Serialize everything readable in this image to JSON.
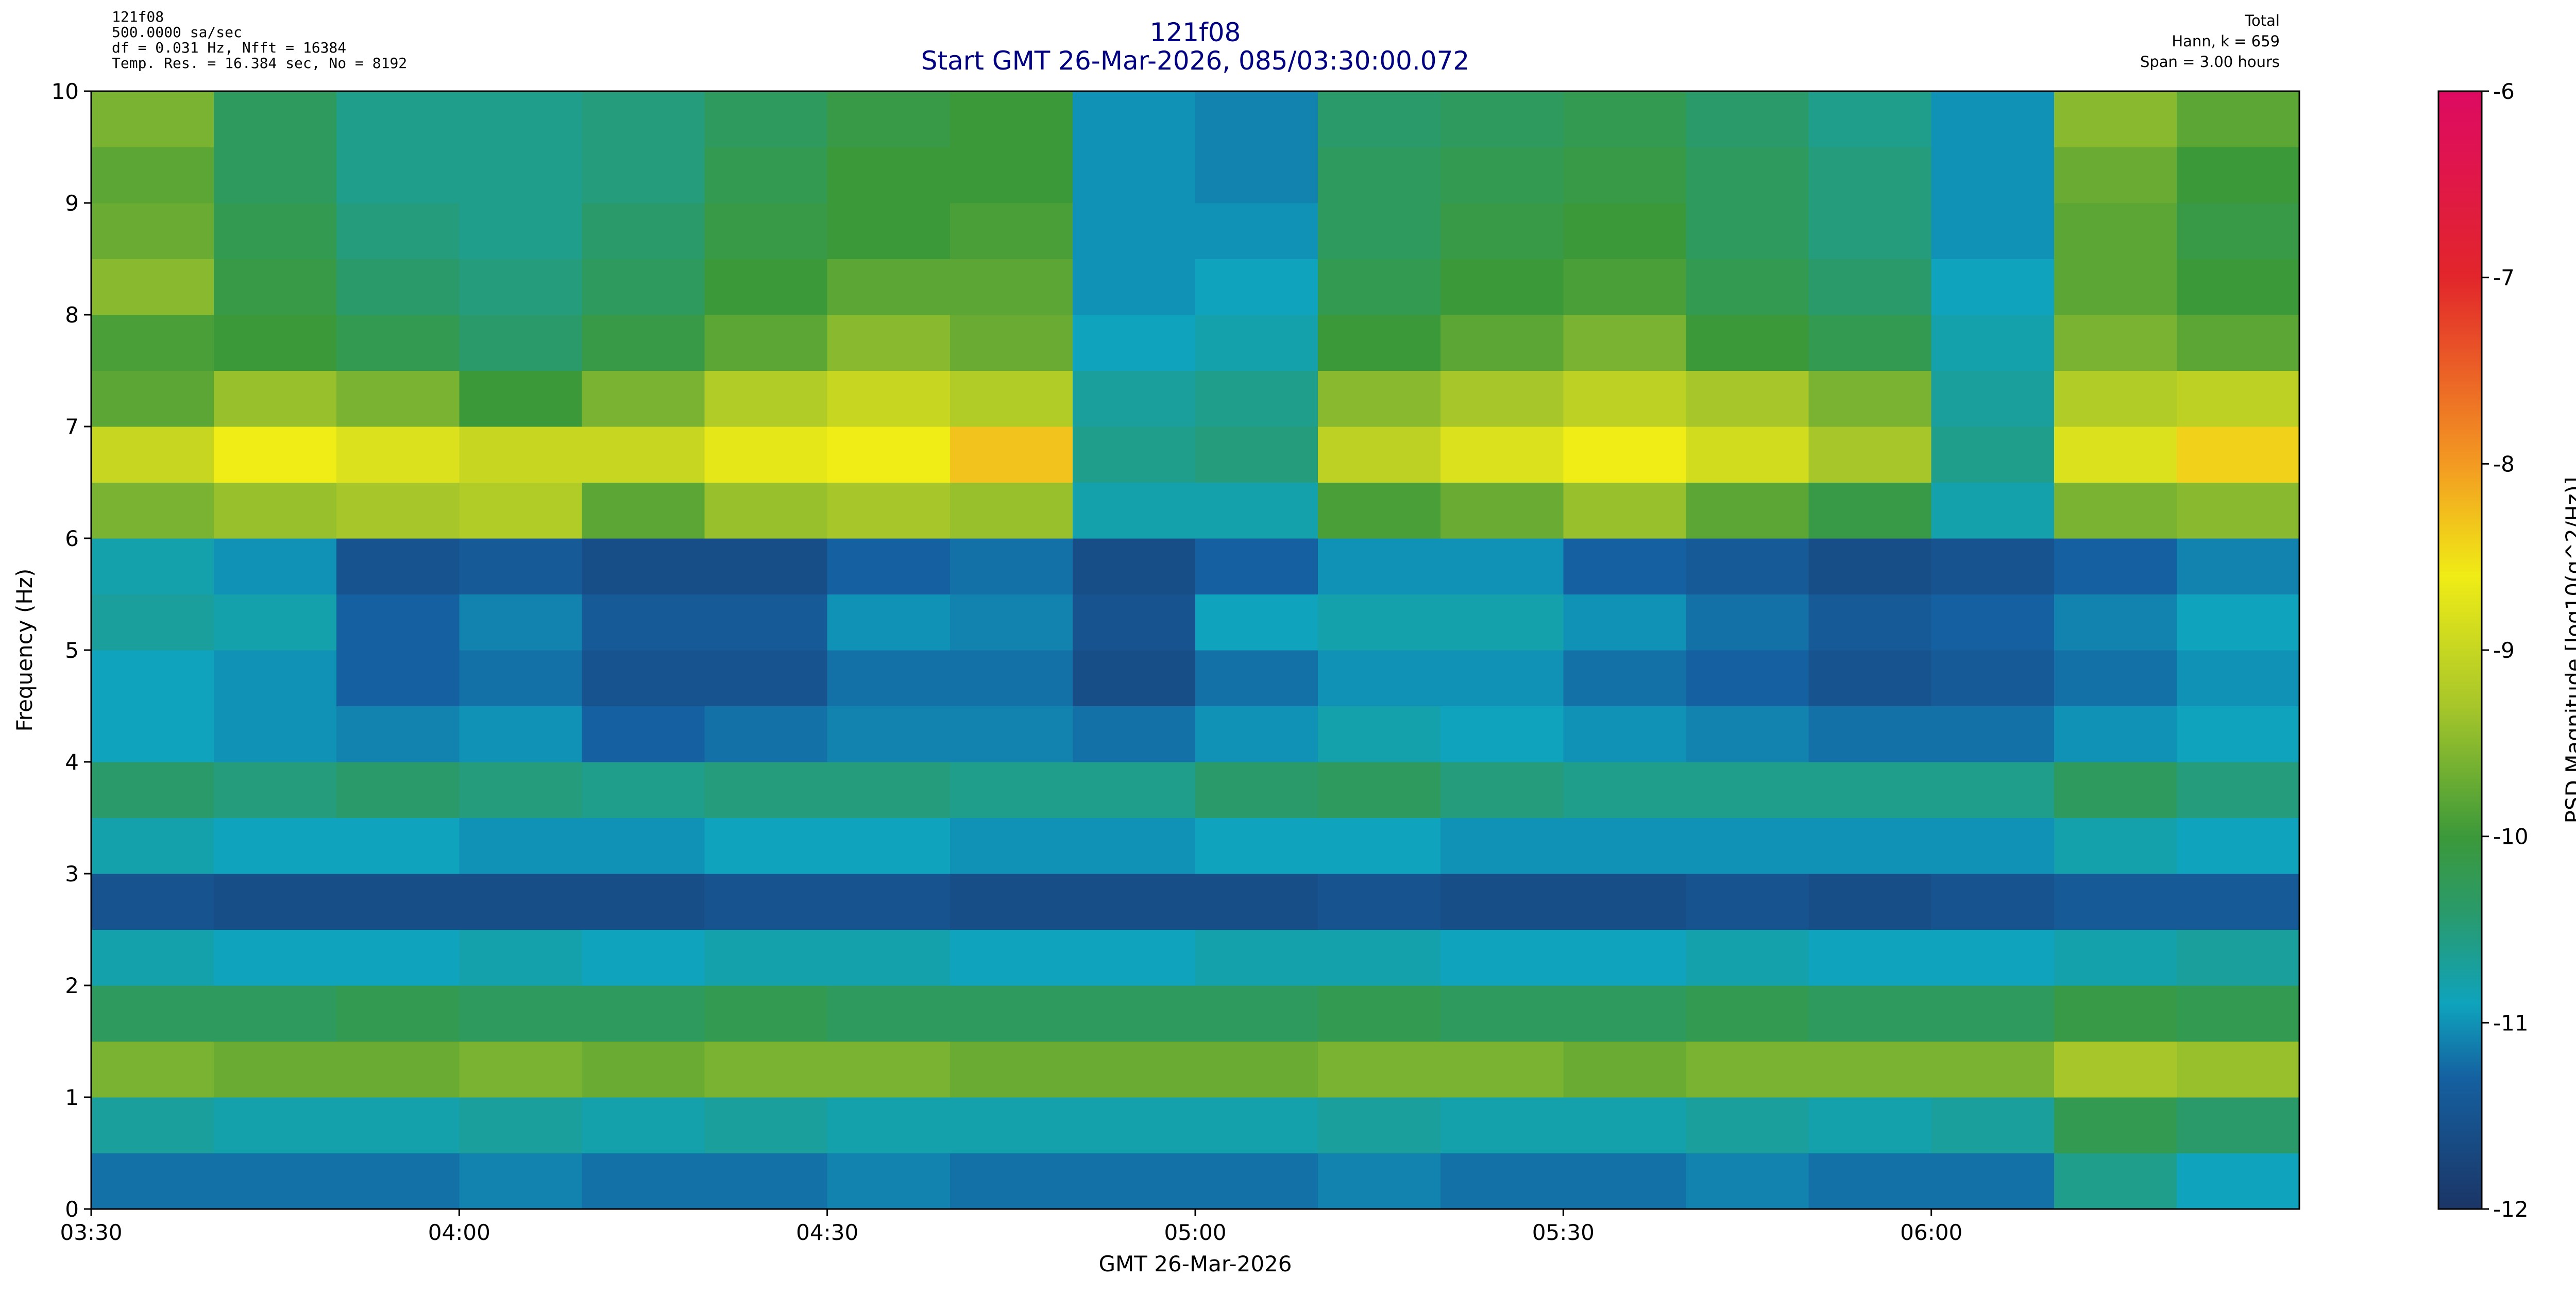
{
  "chart_data": {
    "type": "heatmap",
    "title": "121f08",
    "subtitle": "Start GMT 26-Mar-2026, 085/03:30:00.072",
    "info_left": [
      "121f08",
      "500.0000 sa/sec",
      "df = 0.031 Hz,  Nfft = 16384",
      "Temp. Res. = 16.384 sec, No = 8192"
    ],
    "info_right": [
      "Total",
      "Hann, k = 659",
      "Span = 3.00 hours"
    ],
    "xlabel": "GMT 26-Mar-2026",
    "ylabel": "Frequency (Hz)",
    "colorbar_label": "PSD Magnitude [log10(g^2/Hz)]",
    "xlim": [
      0,
      180
    ],
    "xticks": [
      {
        "value": 0,
        "label": "03:30"
      },
      {
        "value": 30,
        "label": "04:00"
      },
      {
        "value": 60,
        "label": "04:30"
      },
      {
        "value": 90,
        "label": "05:00"
      },
      {
        "value": 120,
        "label": "05:30"
      },
      {
        "value": 150,
        "label": "06:00"
      }
    ],
    "ylim": [
      0,
      10
    ],
    "yticks": [
      0,
      1,
      2,
      3,
      4,
      5,
      6,
      7,
      8,
      9,
      10
    ],
    "clim": [
      -12,
      -6
    ],
    "cticks": [
      -12,
      -11,
      -10,
      -9,
      -8,
      -7,
      -6
    ],
    "colormap": [
      {
        "value": -12,
        "color": "#1b3566"
      },
      {
        "value": -11.3,
        "color": "#1560a0"
      },
      {
        "value": -10.9,
        "color": "#0fa3bd"
      },
      {
        "value": -10.4,
        "color": "#2a9a6a"
      },
      {
        "value": -10,
        "color": "#3c993a"
      },
      {
        "value": -9.3,
        "color": "#a7c62a"
      },
      {
        "value": -8.6,
        "color": "#f0ec16"
      },
      {
        "value": -8,
        "color": "#f39a22"
      },
      {
        "value": -7,
        "color": "#e2262b"
      },
      {
        "value": -6,
        "color": "#de0a62"
      }
    ],
    "x": [
      0,
      10,
      20,
      30,
      40,
      50,
      60,
      70,
      80,
      90,
      100,
      110,
      120,
      130,
      140,
      150,
      160,
      170
    ],
    "y": [
      0,
      0.5,
      1,
      1.5,
      2,
      2.5,
      3,
      3.5,
      4,
      4.5,
      5,
      5.5,
      6,
      6.5,
      7,
      7.5,
      8,
      8.5,
      9,
      9.5
    ],
    "values": [
      [
        -11.2,
        -11.2,
        -11.2,
        -11.1,
        -11.2,
        -11.2,
        -11.1,
        -11.2,
        -11.2,
        -11.2,
        -11.1,
        -11.2,
        -11.2,
        -11.1,
        -11.2,
        -11.2,
        -10.6,
        -10.9
      ],
      [
        -10.7,
        -10.8,
        -10.8,
        -10.7,
        -10.8,
        -10.7,
        -10.8,
        -10.8,
        -10.8,
        -10.8,
        -10.7,
        -10.8,
        -10.8,
        -10.7,
        -10.8,
        -10.7,
        -10.2,
        -10.4
      ],
      [
        -9.6,
        -9.7,
        -9.7,
        -9.6,
        -9.7,
        -9.6,
        -9.6,
        -9.7,
        -9.7,
        -9.7,
        -9.6,
        -9.6,
        -9.7,
        -9.6,
        -9.6,
        -9.6,
        -9.3,
        -9.4
      ],
      [
        -10.3,
        -10.3,
        -10.2,
        -10.3,
        -10.3,
        -10.2,
        -10.3,
        -10.3,
        -10.3,
        -10.3,
        -10.2,
        -10.3,
        -10.3,
        -10.2,
        -10.3,
        -10.3,
        -10.1,
        -10.2
      ],
      [
        -10.8,
        -10.9,
        -10.9,
        -10.8,
        -10.9,
        -10.8,
        -10.8,
        -10.9,
        -10.9,
        -10.8,
        -10.8,
        -10.9,
        -10.9,
        -10.8,
        -10.9,
        -10.9,
        -10.8,
        -10.7
      ],
      [
        -11.5,
        -11.6,
        -11.6,
        -11.6,
        -11.6,
        -11.5,
        -11.5,
        -11.6,
        -11.6,
        -11.6,
        -11.5,
        -11.6,
        -11.6,
        -11.5,
        -11.6,
        -11.5,
        -11.4,
        -11.4
      ],
      [
        -10.8,
        -10.9,
        -10.9,
        -11.0,
        -11.0,
        -10.9,
        -10.9,
        -11.0,
        -11.0,
        -10.9,
        -10.9,
        -11.0,
        -11.0,
        -11.0,
        -11.0,
        -11.0,
        -10.8,
        -10.9
      ],
      [
        -10.4,
        -10.5,
        -10.4,
        -10.5,
        -10.6,
        -10.5,
        -10.5,
        -10.6,
        -10.6,
        -10.4,
        -10.3,
        -10.5,
        -10.6,
        -10.6,
        -10.6,
        -10.6,
        -10.3,
        -10.5
      ],
      [
        -10.9,
        -11.0,
        -11.1,
        -11.0,
        -11.3,
        -11.2,
        -11.1,
        -11.1,
        -11.2,
        -11.0,
        -10.8,
        -10.9,
        -11.0,
        -11.1,
        -11.2,
        -11.2,
        -11.0,
        -10.9
      ],
      [
        -10.9,
        -11.0,
        -11.3,
        -11.2,
        -11.5,
        -11.5,
        -11.2,
        -11.2,
        -11.6,
        -11.2,
        -11.0,
        -11.0,
        -11.2,
        -11.3,
        -11.5,
        -11.4,
        -11.2,
        -11.0
      ],
      [
        -10.7,
        -10.8,
        -11.3,
        -11.1,
        -11.4,
        -11.4,
        -11.0,
        -11.1,
        -11.5,
        -10.9,
        -10.8,
        -10.8,
        -11.0,
        -11.2,
        -11.4,
        -11.3,
        -11.1,
        -10.9
      ],
      [
        -10.8,
        -11.0,
        -11.5,
        -11.4,
        -11.6,
        -11.6,
        -11.3,
        -11.2,
        -11.6,
        -11.3,
        -11.0,
        -11.0,
        -11.3,
        -11.4,
        -11.6,
        -11.5,
        -11.3,
        -11.1
      ],
      [
        -9.6,
        -9.4,
        -9.3,
        -9.2,
        -9.8,
        -9.4,
        -9.3,
        -9.4,
        -10.8,
        -10.8,
        -9.9,
        -9.7,
        -9.4,
        -9.8,
        -10.1,
        -10.8,
        -9.6,
        -9.5
      ],
      [
        -9.0,
        -8.6,
        -8.8,
        -9.0,
        -9.0,
        -8.7,
        -8.6,
        -8.3,
        -10.6,
        -10.5,
        -9.1,
        -8.8,
        -8.6,
        -8.9,
        -9.3,
        -10.6,
        -8.8,
        -8.4
      ],
      [
        -9.8,
        -9.4,
        -9.6,
        -10.0,
        -9.6,
        -9.2,
        -9.0,
        -9.2,
        -10.7,
        -10.6,
        -9.5,
        -9.3,
        -9.1,
        -9.3,
        -9.6,
        -10.7,
        -9.2,
        -9.1
      ],
      [
        -9.9,
        -10.0,
        -10.2,
        -10.4,
        -10.1,
        -9.8,
        -9.5,
        -9.7,
        -10.9,
        -10.8,
        -10.0,
        -9.8,
        -9.6,
        -10.0,
        -10.2,
        -10.8,
        -9.6,
        -9.8
      ],
      [
        -9.5,
        -10.1,
        -10.4,
        -10.5,
        -10.3,
        -10.0,
        -9.8,
        -9.8,
        -11.0,
        -10.9,
        -10.2,
        -10.0,
        -9.9,
        -10.2,
        -10.4,
        -10.9,
        -9.8,
        -10.0
      ],
      [
        -9.7,
        -10.2,
        -10.5,
        -10.6,
        -10.4,
        -10.1,
        -10.0,
        -9.9,
        -11.0,
        -11.0,
        -10.3,
        -10.1,
        -10.0,
        -10.3,
        -10.5,
        -11.0,
        -9.8,
        -10.1
      ],
      [
        -9.8,
        -10.3,
        -10.6,
        -10.6,
        -10.5,
        -10.2,
        -10.0,
        -10.0,
        -11.0,
        -11.1,
        -10.3,
        -10.2,
        -10.1,
        -10.3,
        -10.5,
        -11.0,
        -9.7,
        -10.0
      ],
      [
        -9.6,
        -10.3,
        -10.6,
        -10.6,
        -10.5,
        -10.3,
        -10.1,
        -10.0,
        -11.0,
        -11.1,
        -10.4,
        -10.3,
        -10.2,
        -10.4,
        -10.6,
        -11.0,
        -9.5,
        -9.8
      ]
    ]
  }
}
